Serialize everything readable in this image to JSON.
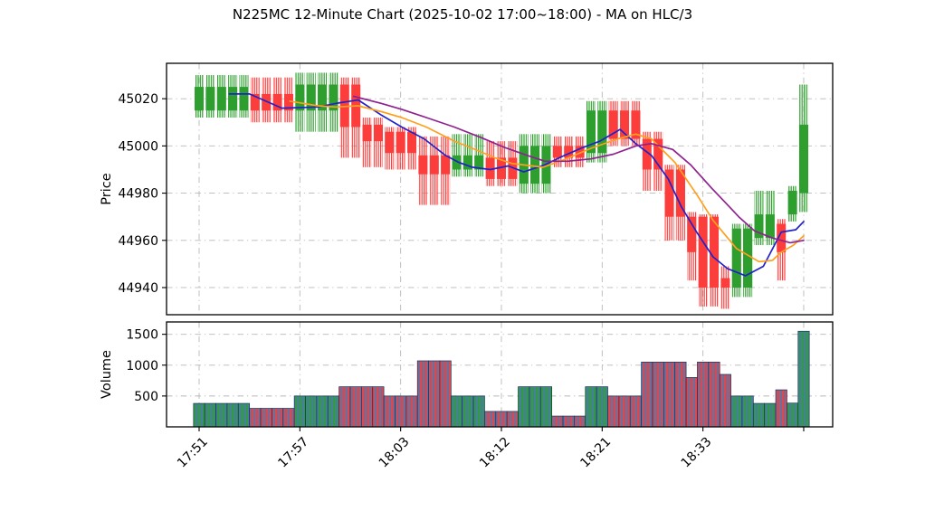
{
  "title": "N225MC 12-Minute Chart (2025-10-02 17:00~18:00) - MA on HLC/3",
  "chart_data": {
    "type": "candlestick_volume",
    "title": "N225MC 12-Minute Chart (2025-10-02 17:00~18:00) - MA on HLC/3",
    "price_panel": {
      "ylabel": "Price",
      "yticks": [
        44940,
        44960,
        44980,
        45000,
        45020
      ],
      "ylim": [
        44928.5,
        45035
      ],
      "grid": "dash-dot"
    },
    "volume_panel": {
      "ylabel": "Volume",
      "yticks": [
        500,
        1000,
        1500
      ],
      "ylim": [
        0,
        1700
      ]
    },
    "xticks": {
      "labels": [
        "17:51",
        "17:57",
        "18:03",
        "18:12",
        "18:21",
        "18:33",
        ""
      ],
      "candle_indices": [
        0,
        9,
        18,
        27,
        36,
        45,
        54
      ],
      "rotation": 45
    },
    "colors": {
      "up": "#2e9e2e",
      "down": "#fb3d3c",
      "ma_fast": "#2222cc",
      "ma_mid": "#ff9f1e",
      "ma_slow": "#8f2190",
      "volume_base": "#4a7bb0",
      "volume_outline": "#17335f",
      "grid": "#b8b8b8",
      "axis": "#000000"
    },
    "segments_note": "each segment draws `count` consecutive identical candles/volume bars",
    "segments": [
      {
        "count": 5,
        "open": 45015,
        "high": 45030,
        "low": 45012,
        "close": 45025,
        "volume": 380
      },
      {
        "count": 4,
        "open": 45022,
        "high": 45029,
        "low": 45010,
        "close": 45015,
        "volume": 300
      },
      {
        "count": 4,
        "open": 45015,
        "high": 45031,
        "low": 45006,
        "close": 45026,
        "volume": 500
      },
      {
        "count": 2,
        "open": 45026,
        "high": 45029,
        "low": 44995,
        "close": 45008,
        "volume": 650
      },
      {
        "count": 2,
        "open": 45009,
        "high": 45012,
        "low": 44991,
        "close": 45002,
        "volume": 650
      },
      {
        "count": 3,
        "open": 45006,
        "high": 45008,
        "low": 44990,
        "close": 44997,
        "volume": 500
      },
      {
        "count": 3,
        "open": 44996,
        "high": 45004,
        "low": 44975,
        "close": 44988,
        "volume": 1070
      },
      {
        "count": 3,
        "open": 44990,
        "high": 45005,
        "low": 44987,
        "close": 44996,
        "volume": 500
      },
      {
        "count": 3,
        "open": 44995,
        "high": 45002,
        "low": 44983,
        "close": 44986,
        "volume": 250
      },
      {
        "count": 3,
        "open": 44984,
        "high": 45005,
        "low": 44980,
        "close": 45000,
        "volume": 650
      },
      {
        "count": 3,
        "open": 45000,
        "high": 45004,
        "low": 44991,
        "close": 44995,
        "volume": 175
      },
      {
        "count": 2,
        "open": 44997,
        "high": 45019,
        "low": 44993,
        "close": 45015,
        "volume": 650
      },
      {
        "count": 3,
        "open": 45015,
        "high": 45019,
        "low": 45000,
        "close": 45003,
        "volume": 500
      },
      {
        "count": 2,
        "open": 45003,
        "high": 45006,
        "low": 44981,
        "close": 44990,
        "volume": 1050
      },
      {
        "count": 2,
        "open": 44990,
        "high": 44992,
        "low": 44960,
        "close": 44970,
        "volume": 1050
      },
      {
        "count": 1,
        "open": 44970,
        "high": 44972,
        "low": 44943,
        "close": 44955,
        "volume": 800
      },
      {
        "count": 2,
        "open": 44970,
        "high": 44971,
        "low": 44932,
        "close": 44940,
        "volume": 1050
      },
      {
        "count": 1,
        "open": 44944,
        "high": 44949,
        "low": 44931,
        "close": 44940,
        "volume": 850
      },
      {
        "count": 2,
        "open": 44940,
        "high": 44967,
        "low": 44936,
        "close": 44965,
        "volume": 500
      },
      {
        "count": 2,
        "open": 44961,
        "high": 44981,
        "low": 44958,
        "close": 44971,
        "volume": 380
      },
      {
        "count": 1,
        "open": 44967,
        "high": 44969,
        "low": 44943,
        "close": 44955,
        "volume": 600
      },
      {
        "count": 1,
        "open": 44971,
        "high": 44983,
        "low": 44968,
        "close": 44981,
        "volume": 385
      },
      {
        "count": 1,
        "open": 44980,
        "high": 45026,
        "low": 44972,
        "close": 45009,
        "volume": 1550
      }
    ],
    "moving_averages": [
      {
        "name": "MA fast",
        "color": "#2222cc",
        "points": [
          [
            2.7,
            45022
          ],
          [
            4.5,
            45022
          ],
          [
            7.4,
            45016
          ],
          [
            10.6,
            45016.5
          ],
          [
            12.2,
            45018
          ],
          [
            14.2,
            45019.5
          ],
          [
            16.3,
            45013
          ],
          [
            18.1,
            45008
          ],
          [
            20.1,
            45003
          ],
          [
            22,
            44996
          ],
          [
            23.2,
            44993
          ],
          [
            24.4,
            44991
          ],
          [
            26,
            44990
          ],
          [
            27.6,
            44991.5
          ],
          [
            29,
            44989
          ],
          [
            30.9,
            44992
          ],
          [
            32.4,
            44995.5
          ],
          [
            34.1,
            44999
          ],
          [
            35.8,
            45002
          ],
          [
            37.6,
            45007
          ],
          [
            39,
            45001
          ],
          [
            40.4,
            44996
          ],
          [
            41.9,
            44986
          ],
          [
            43.1,
            44974
          ],
          [
            44.5,
            44963
          ],
          [
            45.9,
            44953
          ],
          [
            47.2,
            44948
          ],
          [
            48.8,
            44945
          ],
          [
            50.4,
            44949
          ],
          [
            52,
            44963.5
          ],
          [
            53.3,
            44964.5
          ],
          [
            54,
            44968
          ]
        ]
      },
      {
        "name": "MA mid",
        "color": "#ff9f1e",
        "points": [
          [
            8.1,
            45019
          ],
          [
            10.6,
            45017
          ],
          [
            12.2,
            45016.5
          ],
          [
            14.2,
            45017
          ],
          [
            16.3,
            45014.5
          ],
          [
            18.1,
            45012
          ],
          [
            20.3,
            45008
          ],
          [
            22.8,
            45002
          ],
          [
            24.4,
            44999
          ],
          [
            26.4,
            44995
          ],
          [
            28,
            44992.5
          ],
          [
            30.7,
            44991
          ],
          [
            32.5,
            44994
          ],
          [
            35,
            44999
          ],
          [
            37.4,
            45003
          ],
          [
            39,
            45005
          ],
          [
            40.4,
            45003
          ],
          [
            42.5,
            44993
          ],
          [
            44.5,
            44979
          ],
          [
            45.9,
            44968.5
          ],
          [
            48,
            44956.5
          ],
          [
            50,
            44951
          ],
          [
            51.2,
            44951.5
          ],
          [
            52,
            44955
          ],
          [
            53.1,
            44958
          ],
          [
            54,
            44962
          ]
        ]
      },
      {
        "name": "MA slow",
        "color": "#8f2190",
        "points": [
          [
            13.8,
            45021
          ],
          [
            16.3,
            45018
          ],
          [
            18.1,
            45015.5
          ],
          [
            20.3,
            45012
          ],
          [
            22.8,
            45008
          ],
          [
            25.2,
            45003.5
          ],
          [
            27.2,
            44999.5
          ],
          [
            29.3,
            44996
          ],
          [
            30.9,
            44993.5
          ],
          [
            32.9,
            44993.5
          ],
          [
            35,
            44994.5
          ],
          [
            37,
            44996.5
          ],
          [
            39,
            45000
          ],
          [
            40.4,
            45001
          ],
          [
            42.3,
            44998.5
          ],
          [
            43.9,
            44992
          ],
          [
            45.8,
            44982
          ],
          [
            47.2,
            44975
          ],
          [
            48.2,
            44970
          ],
          [
            49.6,
            44964
          ],
          [
            51.2,
            44961
          ],
          [
            52.8,
            44959
          ],
          [
            54,
            44960
          ]
        ]
      }
    ]
  }
}
